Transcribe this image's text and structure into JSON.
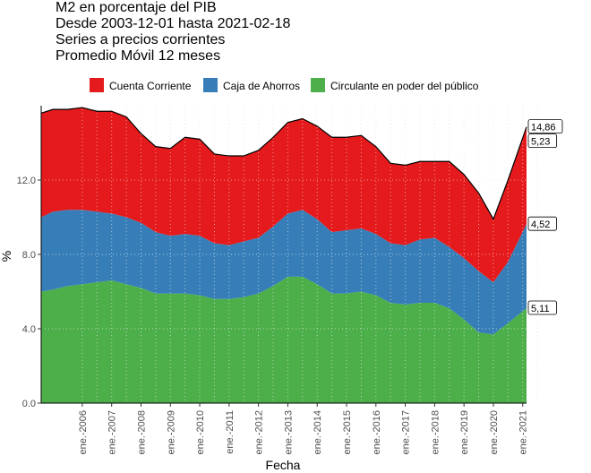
{
  "chart_data": {
    "type": "area",
    "title": "M2 en porcentaje del PIB",
    "subtitle_lines": [
      "Desde 2003-12-01 hasta 2021-02-18",
      "Series a precios corrientes",
      "Promedio Móvil 12 meses"
    ],
    "xlabel": "Fecha",
    "ylabel": "%",
    "xlim": [
      2004.6,
      2021.13
    ],
    "ylim": [
      0,
      16
    ],
    "yticks": [
      0.0,
      4.0,
      8.0,
      12.0
    ],
    "ytick_labels": [
      "0.0",
      "4.0",
      "8.0",
      "12.0"
    ],
    "xticks": [
      2006,
      2007,
      2008,
      2009,
      2010,
      2011,
      2012,
      2013,
      2014,
      2015,
      2016,
      2017,
      2018,
      2019,
      2020,
      2021
    ],
    "xtick_labels": [
      "ene.-2006",
      "ene.-2007",
      "ene.-2008",
      "ene.-2009",
      "ene.-2010",
      "ene.-2011",
      "ene.-2012",
      "ene.-2013",
      "ene.-2014",
      "ene.-2015",
      "ene.-2016",
      "ene.-2017",
      "ene.-2018",
      "ene.-2019",
      "ene.-2020",
      "ene.-2021"
    ],
    "stacked": true,
    "grid": true,
    "legend_position": "top",
    "x": [
      2004.6,
      2005.0,
      2005.5,
      2006.0,
      2006.5,
      2007.0,
      2007.5,
      2008.0,
      2008.5,
      2009.0,
      2009.5,
      2010.0,
      2010.5,
      2011.0,
      2011.5,
      2012.0,
      2012.5,
      2013.0,
      2013.5,
      2014.0,
      2014.5,
      2015.0,
      2015.5,
      2016.0,
      2016.5,
      2017.0,
      2017.5,
      2018.0,
      2018.5,
      2019.0,
      2019.5,
      2020.0,
      2020.5,
      2021.13
    ],
    "series": [
      {
        "name": "Circulante en poder del público",
        "color": "#4DAF4A",
        "values": [
          6.0,
          6.1,
          6.3,
          6.4,
          6.5,
          6.6,
          6.4,
          6.2,
          5.9,
          5.9,
          5.9,
          5.8,
          5.6,
          5.6,
          5.7,
          5.9,
          6.3,
          6.8,
          6.8,
          6.4,
          5.9,
          5.9,
          6.0,
          5.8,
          5.4,
          5.3,
          5.4,
          5.4,
          5.1,
          4.5,
          3.8,
          3.7,
          4.3,
          5.11
        ]
      },
      {
        "name": "Caja de Ahorros",
        "color": "#377EB8",
        "values": [
          4.0,
          4.2,
          4.1,
          4.0,
          3.8,
          3.6,
          3.6,
          3.5,
          3.3,
          3.1,
          3.2,
          3.2,
          3.0,
          2.9,
          3.0,
          3.0,
          3.2,
          3.4,
          3.6,
          3.5,
          3.3,
          3.4,
          3.4,
          3.3,
          3.2,
          3.2,
          3.4,
          3.5,
          3.3,
          3.3,
          3.3,
          2.8,
          3.3,
          4.52
        ]
      },
      {
        "name": "Cuenta Corriente",
        "color": "#E41A1C",
        "values": [
          5.6,
          5.5,
          5.4,
          5.5,
          5.4,
          5.5,
          5.4,
          4.8,
          4.6,
          4.7,
          5.2,
          5.2,
          4.8,
          4.8,
          4.6,
          4.7,
          4.8,
          4.9,
          4.9,
          5.0,
          5.1,
          5.0,
          5.0,
          4.7,
          4.3,
          4.3,
          4.2,
          4.1,
          4.6,
          4.5,
          4.2,
          3.4,
          4.4,
          5.23
        ]
      }
    ],
    "end_labels": [
      "14,86",
      "5,23",
      "4,52",
      "5,11"
    ]
  }
}
